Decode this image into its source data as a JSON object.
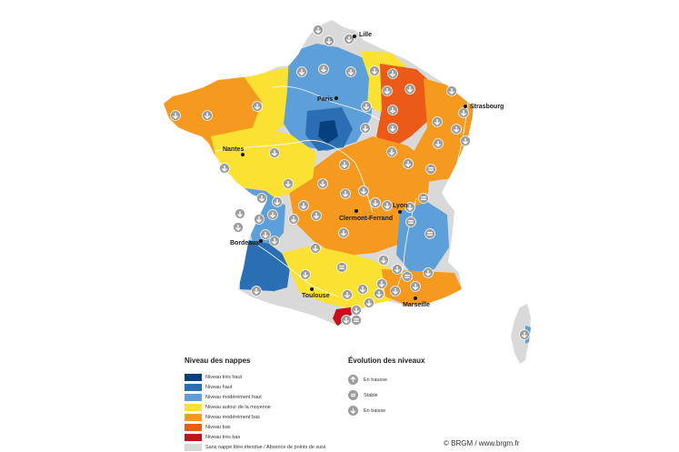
{
  "cities": [
    {
      "key": "lille",
      "name": "Lille"
    },
    {
      "key": "paris",
      "name": "Paris"
    },
    {
      "key": "strasbourg",
      "name": "Strasbourg"
    },
    {
      "key": "nantes",
      "name": "Nantes"
    },
    {
      "key": "lyon",
      "name": "Lyon"
    },
    {
      "key": "clermont",
      "name": "Clermont-Ferrand"
    },
    {
      "key": "bordeaux",
      "name": "Bordeaux"
    },
    {
      "key": "toulouse",
      "name": "Toulouse"
    },
    {
      "key": "marseille",
      "name": "Marseille"
    }
  ],
  "legend_levels": {
    "title": "Niveau des nappes",
    "items": [
      {
        "label": "Niveau très haut",
        "color": "#083f7e"
      },
      {
        "label": "Niveau haut",
        "color": "#2a6eb4"
      },
      {
        "label": "Niveau modérément haut",
        "color": "#5d9fd8"
      },
      {
        "label": "Niveau autour de la moyenne",
        "color": "#fbe232"
      },
      {
        "label": "Niveau modérément bas",
        "color": "#f59a1e"
      },
      {
        "label": "Niveau bas",
        "color": "#eb5a16"
      },
      {
        "label": "Niveau très bas",
        "color": "#c8101d"
      },
      {
        "label": "Sans nappe libre étendue / Absence de points de suivi",
        "color": "#d9d9d9"
      }
    ]
  },
  "legend_evolution": {
    "title": "Évolution des niveaux",
    "items": [
      {
        "label": "En hausse",
        "icon": "arrow-up-icon"
      },
      {
        "label": "Stable",
        "icon": "equals-icon"
      },
      {
        "label": "En baisse",
        "icon": "arrow-down-icon"
      }
    ]
  },
  "credit": "© BRGM / www.brgm.fr"
}
